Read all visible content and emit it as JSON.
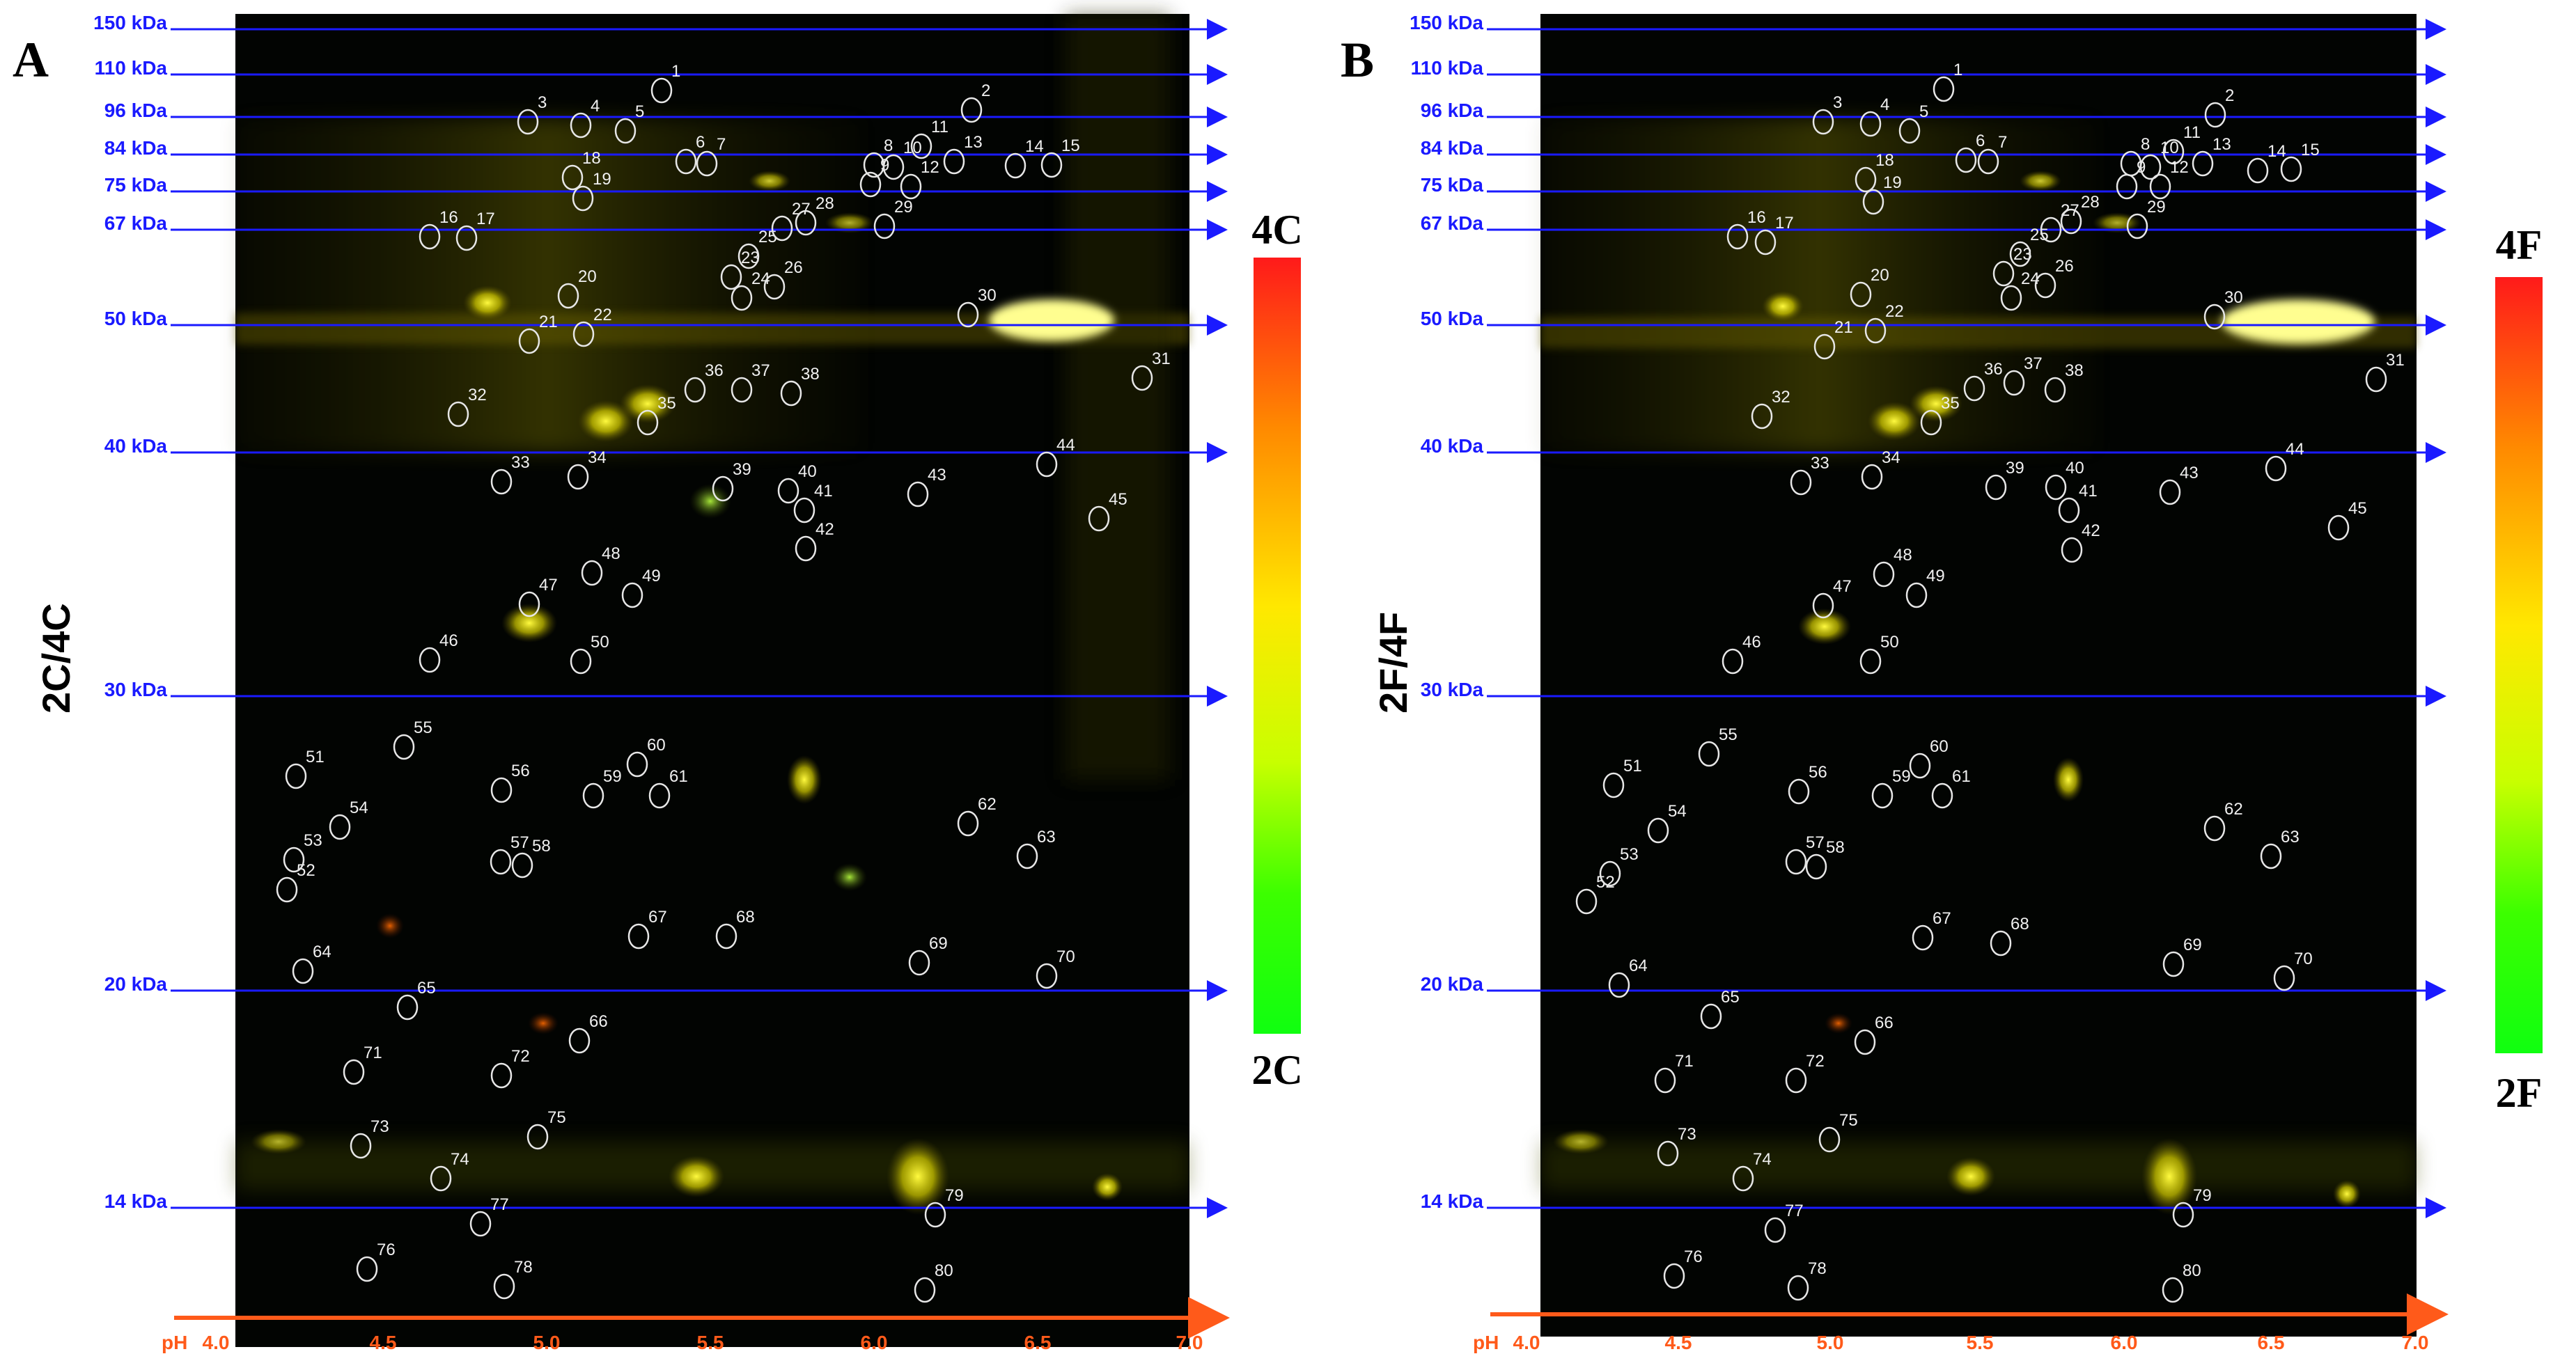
{
  "panels": [
    {
      "letter": "A",
      "comparison": "2C/4C",
      "colorbar_top": "4C",
      "colorbar_bottom": "2C"
    },
    {
      "letter": "B",
      "comparison": "2F/4F",
      "colorbar_top": "4F",
      "colorbar_bottom": "2F"
    }
  ],
  "mw_markers": [
    "150 kDa",
    "110 kDa",
    "96 kDa",
    "84 kDa",
    "75 kDa",
    "67 kDa",
    "50 kDa",
    "40 kDa",
    "30 kDa",
    "20 kDa",
    "14 kDa"
  ],
  "ph_axis": {
    "prefix": "pH",
    "ticks": [
      "4.0",
      "4.5",
      "5.0",
      "5.5",
      "6.0",
      "6.5",
      "7.0"
    ]
  },
  "spots": {
    "A": [
      [
        "1",
        950,
        130
      ],
      [
        "2",
        1395,
        158
      ],
      [
        "3",
        758,
        175
      ],
      [
        "4",
        834,
        180
      ],
      [
        "5",
        898,
        188
      ],
      [
        "6",
        985,
        232
      ],
      [
        "7",
        1015,
        235
      ],
      [
        "8",
        1255,
        237
      ],
      [
        "9",
        1250,
        265
      ],
      [
        "10",
        1283,
        240
      ],
      [
        "11",
        1323,
        210
      ],
      [
        "12",
        1308,
        268
      ],
      [
        "13",
        1370,
        232
      ],
      [
        "14",
        1458,
        238
      ],
      [
        "15",
        1510,
        237
      ],
      [
        "16",
        617,
        340
      ],
      [
        "17",
        670,
        342
      ],
      [
        "18",
        822,
        255
      ],
      [
        "19",
        837,
        285
      ],
      [
        "20",
        816,
        425
      ],
      [
        "21",
        760,
        490
      ],
      [
        "22",
        838,
        480
      ],
      [
        "23",
        1050,
        398
      ],
      [
        "24",
        1065,
        428
      ],
      [
        "25",
        1075,
        368
      ],
      [
        "26",
        1112,
        412
      ],
      [
        "27",
        1123,
        328
      ],
      [
        "28",
        1157,
        320
      ],
      [
        "29",
        1270,
        325
      ],
      [
        "30",
        1390,
        452
      ],
      [
        "31",
        1640,
        543
      ],
      [
        "32",
        658,
        595
      ],
      [
        "33",
        720,
        692
      ],
      [
        "34",
        830,
        685
      ],
      [
        "35",
        930,
        607
      ],
      [
        "36",
        998,
        560
      ],
      [
        "37",
        1065,
        560
      ],
      [
        "38",
        1136,
        565
      ],
      [
        "39",
        1038,
        702
      ],
      [
        "40",
        1132,
        705
      ],
      [
        "41",
        1155,
        733
      ],
      [
        "42",
        1157,
        788
      ],
      [
        "43",
        1318,
        710
      ],
      [
        "44",
        1503,
        667
      ],
      [
        "45",
        1578,
        745
      ],
      [
        "46",
        617,
        948
      ],
      [
        "47",
        760,
        868
      ],
      [
        "48",
        850,
        823
      ],
      [
        "49",
        908,
        855
      ],
      [
        "50",
        834,
        950
      ],
      [
        "51",
        425,
        1115
      ],
      [
        "52",
        412,
        1278
      ],
      [
        "53",
        422,
        1235
      ],
      [
        "54",
        488,
        1188
      ],
      [
        "55",
        580,
        1073
      ],
      [
        "56",
        720,
        1135
      ],
      [
        "57",
        719,
        1238
      ],
      [
        "58",
        750,
        1243
      ],
      [
        "59",
        852,
        1143
      ],
      [
        "60",
        915,
        1098
      ],
      [
        "61",
        947,
        1143
      ],
      [
        "62",
        1390,
        1183
      ],
      [
        "63",
        1475,
        1230
      ],
      [
        "64",
        435,
        1395
      ],
      [
        "65",
        585,
        1447
      ],
      [
        "66",
        832,
        1495
      ],
      [
        "67",
        917,
        1345
      ],
      [
        "68",
        1043,
        1345
      ],
      [
        "69",
        1320,
        1383
      ],
      [
        "70",
        1503,
        1402
      ],
      [
        "71",
        508,
        1540
      ],
      [
        "72",
        720,
        1545
      ],
      [
        "73",
        518,
        1646
      ],
      [
        "74",
        633,
        1693
      ],
      [
        "75",
        772,
        1633
      ],
      [
        "76",
        527,
        1823
      ],
      [
        "77",
        690,
        1758
      ],
      [
        "78",
        724,
        1848
      ],
      [
        "79",
        1343,
        1745
      ],
      [
        "80",
        1328,
        1853
      ]
    ],
    "B": [
      [
        "1",
        2791,
        128
      ],
      [
        "2",
        3181,
        165
      ],
      [
        "3",
        2618,
        175
      ],
      [
        "4",
        2686,
        178
      ],
      [
        "5",
        2742,
        188
      ],
      [
        "6",
        2823,
        230
      ],
      [
        "7",
        2855,
        232
      ],
      [
        "8",
        3060,
        235
      ],
      [
        "9",
        3054,
        268
      ],
      [
        "10",
        3088,
        240
      ],
      [
        "11",
        3121,
        218
      ],
      [
        "12",
        3102,
        268
      ],
      [
        "13",
        3163,
        235
      ],
      [
        "14",
        3242,
        245
      ],
      [
        "15",
        3290,
        243
      ],
      [
        "16",
        2495,
        340
      ],
      [
        "17",
        2535,
        348
      ],
      [
        "18",
        2679,
        258
      ],
      [
        "19",
        2690,
        290
      ],
      [
        "20",
        2672,
        423
      ],
      [
        "21",
        2620,
        498
      ],
      [
        "22",
        2693,
        475
      ],
      [
        "23",
        2877,
        393
      ],
      [
        "24",
        2888,
        428
      ],
      [
        "25",
        2901,
        365
      ],
      [
        "26",
        2937,
        410
      ],
      [
        "27",
        2945,
        330
      ],
      [
        "28",
        2974,
        318
      ],
      [
        "29",
        3069,
        325
      ],
      [
        "30",
        3180,
        455
      ],
      [
        "31",
        3412,
        545
      ],
      [
        "32",
        2530,
        598
      ],
      [
        "33",
        2586,
        693
      ],
      [
        "34",
        2688,
        685
      ],
      [
        "35",
        2773,
        607
      ],
      [
        "36",
        2835,
        558
      ],
      [
        "37",
        2892,
        550
      ],
      [
        "38",
        2951,
        560
      ],
      [
        "39",
        2866,
        700
      ],
      [
        "40",
        2952,
        700
      ],
      [
        "41",
        2971,
        733
      ],
      [
        "42",
        2975,
        790
      ],
      [
        "43",
        3116,
        707
      ],
      [
        "44",
        3268,
        673
      ],
      [
        "45",
        3358,
        758
      ],
      [
        "46",
        2488,
        950
      ],
      [
        "47",
        2618,
        870
      ],
      [
        "48",
        2705,
        825
      ],
      [
        "49",
        2752,
        855
      ],
      [
        "50",
        2686,
        950
      ],
      [
        "51",
        2317,
        1128
      ],
      [
        "52",
        2278,
        1295
      ],
      [
        "53",
        2312,
        1255
      ],
      [
        "54",
        2381,
        1193
      ],
      [
        "55",
        2454,
        1083
      ],
      [
        "56",
        2583,
        1137
      ],
      [
        "57",
        2579,
        1238
      ],
      [
        "58",
        2608,
        1245
      ],
      [
        "59",
        2703,
        1143
      ],
      [
        "60",
        2757,
        1100
      ],
      [
        "61",
        2789,
        1143
      ],
      [
        "62",
        3180,
        1190
      ],
      [
        "63",
        3261,
        1230
      ],
      [
        "64",
        2325,
        1415
      ],
      [
        "65",
        2457,
        1460
      ],
      [
        "66",
        2678,
        1497
      ],
      [
        "67",
        2761,
        1347
      ],
      [
        "68",
        2873,
        1355
      ],
      [
        "69",
        3121,
        1385
      ],
      [
        "70",
        3280,
        1405
      ],
      [
        "71",
        2391,
        1552
      ],
      [
        "72",
        2579,
        1552
      ],
      [
        "73",
        2395,
        1657
      ],
      [
        "74",
        2503,
        1693
      ],
      [
        "75",
        2627,
        1637
      ],
      [
        "76",
        2404,
        1833
      ],
      [
        "77",
        2549,
        1767
      ],
      [
        "78",
        2582,
        1850
      ],
      [
        "79",
        3135,
        1745
      ],
      [
        "80",
        3120,
        1853
      ]
    ]
  }
}
